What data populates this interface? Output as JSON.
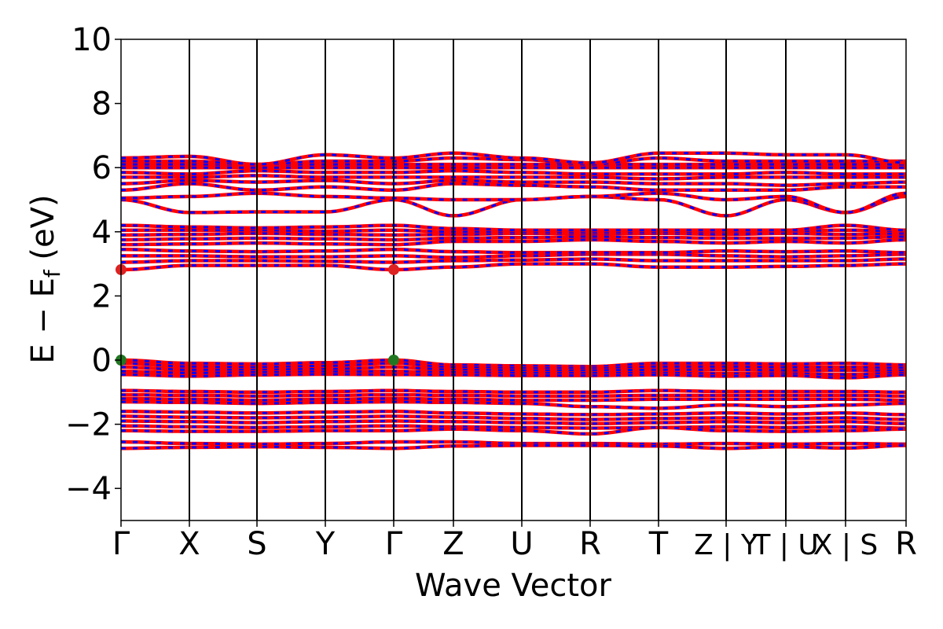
{
  "chart_data": {
    "type": "line",
    "title": "",
    "xlabel": "Wave Vector",
    "ylabel": "E − E",
    "ylabel_sub": "f",
    "ylabel_unit": " (eV)",
    "ylim": [
      -5,
      10
    ],
    "yticks": [
      {
        "value": -4,
        "label": "−4"
      },
      {
        "value": -2,
        "label": "−2"
      },
      {
        "value": 0,
        "label": "0"
      },
      {
        "value": 2,
        "label": "2"
      },
      {
        "value": 4,
        "label": "4"
      },
      {
        "value": 6,
        "label": "6"
      },
      {
        "value": 8,
        "label": "8"
      },
      {
        "value": 10,
        "label": "10"
      }
    ],
    "kpoint_labels": [
      "Γ",
      "X",
      "S",
      "Y",
      "Γ",
      "Z",
      "U",
      "R",
      "T",
      "Z | Y",
      "T | U",
      "X | S",
      "R"
    ],
    "xlim": [
      0,
      12
    ],
    "series_colors": [
      "#ff0000",
      "#0000ff"
    ],
    "markers": [
      {
        "name": "cbm",
        "x": 0,
        "y": 2.82,
        "color": "#dd2222"
      },
      {
        "name": "cbm",
        "x": 4,
        "y": 2.82,
        "color": "#dd2222"
      },
      {
        "name": "vbm",
        "x": 0,
        "y": 0.0,
        "color": "#227722"
      },
      {
        "name": "vbm",
        "x": 4,
        "y": 0.0,
        "color": "#227722"
      }
    ],
    "band_groups": [
      {
        "name": "valence-deep",
        "bands": [
          {
            "vals": [
              -2.55,
              -2.6,
              -2.62,
              -2.6,
              -2.55,
              -2.55,
              -2.6,
              -2.6,
              -2.62,
              -2.6,
              -2.62,
              -2.6,
              -2.62
            ]
          },
          {
            "vals": [
              -2.75,
              -2.72,
              -2.7,
              -2.72,
              -2.75,
              -2.68,
              -2.66,
              -2.66,
              -2.68,
              -2.75,
              -2.7,
              -2.74,
              -2.66
            ]
          }
        ]
      },
      {
        "name": "valence-low",
        "bands": [
          {
            "vals": [
              -1.6,
              -1.62,
              -1.65,
              -1.62,
              -1.6,
              -1.65,
              -1.68,
              -1.7,
              -1.68,
              -1.65,
              -1.68,
              -1.65,
              -1.7
            ]
          },
          {
            "vals": [
              -1.75,
              -1.78,
              -1.8,
              -1.78,
              -1.75,
              -1.78,
              -1.82,
              -1.85,
              -1.82,
              -1.8,
              -1.82,
              -1.8,
              -1.85
            ]
          },
          {
            "vals": [
              -1.9,
              -1.92,
              -1.95,
              -1.92,
              -1.9,
              -1.92,
              -1.95,
              -1.98,
              -1.95,
              -1.92,
              -1.95,
              -1.92,
              -1.98
            ]
          },
          {
            "vals": [
              -2.05,
              -2.08,
              -2.1,
              -2.08,
              -2.05,
              -2.08,
              -2.1,
              -2.12,
              -2.1,
              -2.08,
              -2.1,
              -2.08,
              -2.12
            ]
          },
          {
            "vals": [
              -2.2,
              -2.22,
              -2.22,
              -2.2,
              -2.2,
              -2.15,
              -2.2,
              -2.3,
              -2.1,
              -2.2,
              -2.22,
              -2.2,
              -2.15
            ]
          }
        ]
      },
      {
        "name": "valence-mid",
        "bands": [
          {
            "vals": [
              -0.95,
              -0.98,
              -1.0,
              -0.98,
              -0.95,
              -0.98,
              -1.0,
              -1.0,
              -0.95,
              -0.98,
              -0.98,
              -0.98,
              -1.0
            ]
          },
          {
            "vals": [
              -1.08,
              -1.1,
              -1.12,
              -1.1,
              -1.08,
              -1.1,
              -1.12,
              -1.12,
              -1.1,
              -1.1,
              -1.1,
              -1.1,
              -1.12
            ]
          },
          {
            "vals": [
              -1.2,
              -1.22,
              -1.25,
              -1.22,
              -1.2,
              -1.22,
              -1.25,
              -1.25,
              -1.22,
              -1.22,
              -1.22,
              -1.22,
              -1.25
            ]
          },
          {
            "vals": [
              -1.3,
              -1.32,
              -1.35,
              -1.32,
              -1.3,
              -1.32,
              -1.35,
              -1.45,
              -1.5,
              -1.4,
              -1.45,
              -1.4,
              -1.35
            ]
          }
        ]
      },
      {
        "name": "valence-top",
        "bands": [
          {
            "vals": [
              0.0,
              -0.1,
              -0.12,
              -0.08,
              0.0,
              -0.15,
              -0.18,
              -0.2,
              -0.1,
              -0.1,
              -0.12,
              -0.1,
              -0.15
            ]
          },
          {
            "vals": [
              -0.1,
              -0.2,
              -0.22,
              -0.18,
              -0.1,
              -0.22,
              -0.25,
              -0.26,
              -0.2,
              -0.2,
              -0.22,
              -0.22,
              -0.24
            ]
          },
          {
            "vals": [
              -0.22,
              -0.3,
              -0.3,
              -0.28,
              -0.22,
              -0.3,
              -0.32,
              -0.32,
              -0.3,
              -0.3,
              -0.32,
              -0.32,
              -0.32
            ]
          },
          {
            "vals": [
              -0.35,
              -0.4,
              -0.38,
              -0.36,
              -0.35,
              -0.38,
              -0.4,
              -0.4,
              -0.4,
              -0.42,
              -0.42,
              -0.45,
              -0.4
            ]
          },
          {
            "vals": [
              -0.45,
              -0.5,
              -0.46,
              -0.44,
              -0.45,
              -0.46,
              -0.48,
              -0.48,
              -0.46,
              -0.5,
              -0.48,
              -0.55,
              -0.46
            ]
          }
        ]
      },
      {
        "name": "conduction-low",
        "bands": [
          {
            "vals": [
              2.82,
              2.95,
              2.95,
              2.95,
              2.82,
              2.9,
              3.0,
              3.0,
              2.9,
              2.9,
              2.92,
              2.95,
              3.0
            ]
          },
          {
            "vals": [
              3.05,
              3.1,
              3.1,
              3.08,
              3.05,
              3.1,
              3.12,
              3.15,
              3.1,
              3.1,
              3.1,
              3.1,
              3.15
            ]
          },
          {
            "vals": [
              3.25,
              3.25,
              3.22,
              3.22,
              3.25,
              3.2,
              3.25,
              3.3,
              3.3,
              3.25,
              3.22,
              3.25,
              3.3
            ]
          },
          {
            "vals": [
              3.45,
              3.4,
              3.38,
              3.4,
              3.45,
              3.38,
              3.35,
              3.35,
              3.35,
              3.4,
              3.38,
              3.4,
              3.35
            ]
          }
        ]
      },
      {
        "name": "conduction-mid",
        "bands": [
          {
            "vals": [
              3.6,
              3.62,
              3.65,
              3.62,
              3.6,
              3.7,
              3.7,
              3.75,
              3.7,
              3.65,
              3.7,
              3.65,
              3.75
            ]
          },
          {
            "vals": [
              3.75,
              3.78,
              3.8,
              3.78,
              3.75,
              3.8,
              3.82,
              3.85,
              3.82,
              3.8,
              3.8,
              3.8,
              3.85
            ]
          },
          {
            "vals": [
              3.9,
              3.92,
              3.95,
              3.92,
              3.9,
              3.92,
              3.95,
              3.95,
              3.95,
              3.92,
              3.95,
              3.92,
              3.95
            ]
          },
          {
            "vals": [
              4.05,
              4.05,
              4.05,
              4.02,
              4.05,
              4.0,
              4.0,
              4.0,
              4.0,
              4.02,
              4.02,
              4.05,
              4.02
            ]
          },
          {
            "vals": [
              4.2,
              4.15,
              4.12,
              4.15,
              4.2,
              4.1,
              4.05,
              4.05,
              4.05,
              4.05,
              4.05,
              4.2,
              4.05
            ]
          }
        ]
      },
      {
        "name": "conduction-upper",
        "bands": [
          {
            "vals": [
              5.0,
              4.6,
              4.62,
              4.62,
              5.0,
              4.5,
              5.0,
              5.1,
              5.0,
              4.5,
              5.0,
              4.6,
              5.1
            ]
          },
          {
            "vals": [
              5.05,
              5.1,
              5.2,
              5.1,
              5.05,
              5.0,
              5.0,
              5.1,
              5.2,
              5.0,
              5.1,
              4.6,
              5.2
            ]
          },
          {
            "vals": [
              5.3,
              5.5,
              5.3,
              5.4,
              5.3,
              5.5,
              5.45,
              5.4,
              5.3,
              5.3,
              5.3,
              5.4,
              5.4
            ]
          },
          {
            "vals": [
              5.5,
              5.6,
              5.55,
              5.6,
              5.5,
              5.6,
              5.55,
              5.55,
              5.5,
              5.5,
              5.45,
              5.5,
              5.55
            ]
          },
          {
            "vals": [
              5.7,
              5.7,
              5.75,
              5.7,
              5.7,
              5.7,
              5.7,
              5.7,
              5.65,
              5.7,
              5.7,
              5.7,
              5.7
            ]
          },
          {
            "vals": [
              5.85,
              5.8,
              5.9,
              5.85,
              5.85,
              5.9,
              5.85,
              5.8,
              5.8,
              5.8,
              5.85,
              5.8,
              5.8
            ]
          },
          {
            "vals": [
              6.0,
              6.0,
              6.0,
              6.0,
              6.0,
              6.0,
              6.0,
              6.0,
              6.0,
              6.0,
              6.0,
              6.0,
              6.0
            ]
          },
          {
            "vals": [
              6.1,
              6.1,
              6.1,
              6.1,
              6.1,
              6.1,
              6.1,
              6.1,
              6.1,
              6.1,
              6.1,
              6.1,
              6.1
            ]
          },
          {
            "vals": [
              6.2,
              6.2,
              6.1,
              6.2,
              6.2,
              6.3,
              6.25,
              6.1,
              6.3,
              6.2,
              6.2,
              6.2,
              6.2
            ]
          },
          {
            "vals": [
              6.3,
              6.35,
              6.1,
              6.4,
              6.3,
              6.45,
              6.3,
              6.15,
              6.45,
              6.45,
              6.4,
              6.4,
              6.15
            ]
          }
        ]
      }
    ]
  }
}
